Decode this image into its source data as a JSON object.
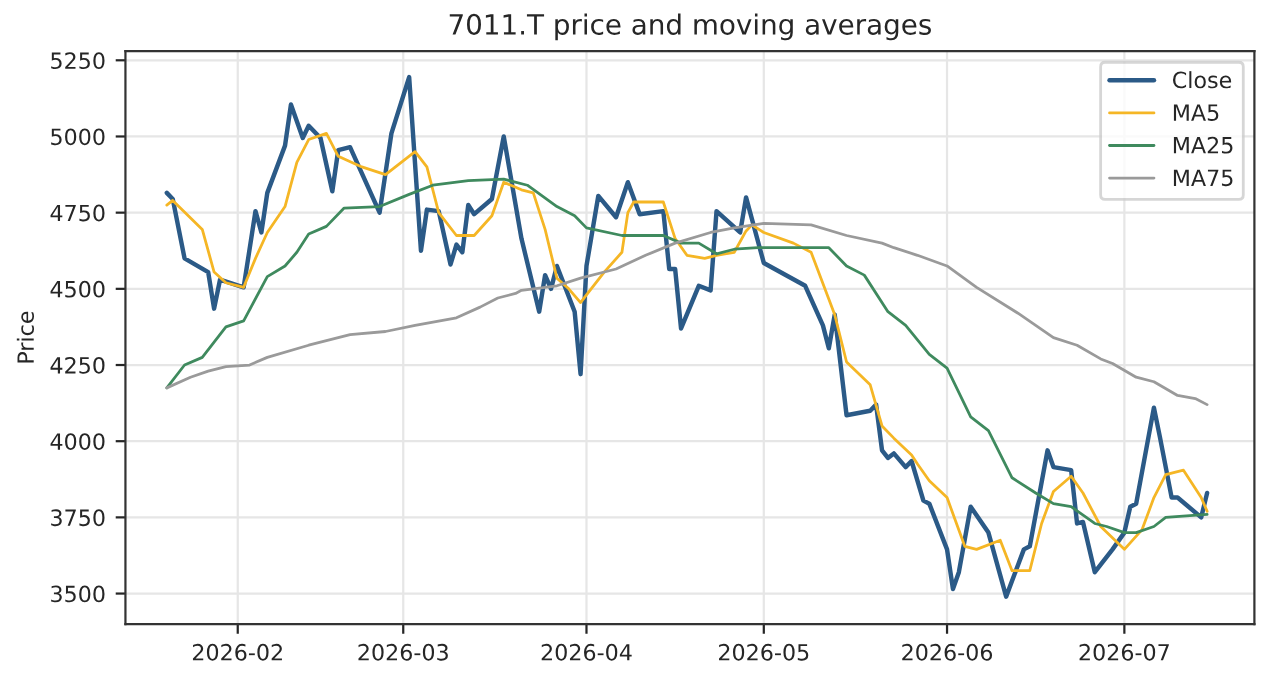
{
  "chart_data": {
    "type": "line",
    "title": "7011.T price and moving averages",
    "ylabel": "Price",
    "xlim": [
      "2026-01-13",
      "2026-07-23"
    ],
    "ylim": [
      3400,
      5280
    ],
    "xticks": [
      {
        "value": "2026-02-01",
        "label": "2026-02"
      },
      {
        "value": "2026-03-01",
        "label": "2026-03"
      },
      {
        "value": "2026-04-01",
        "label": "2026-04"
      },
      {
        "value": "2026-05-01",
        "label": "2026-05"
      },
      {
        "value": "2026-06-01",
        "label": "2026-06"
      },
      {
        "value": "2026-07-01",
        "label": "2026-07"
      }
    ],
    "yticks": [
      3500,
      3750,
      4000,
      4250,
      4500,
      4750,
      5000,
      5250
    ],
    "grid": true,
    "legend": "top right",
    "series": [
      {
        "name": "Close",
        "color": "#2b5a87",
        "x": [
          "2026-01-20",
          "2026-01-21",
          "2026-01-23",
          "2026-01-27",
          "2026-01-28",
          "2026-01-29",
          "2026-02-02",
          "2026-02-04",
          "2026-02-05",
          "2026-02-06",
          "2026-02-09",
          "2026-02-10",
          "2026-02-12",
          "2026-02-13",
          "2026-02-15",
          "2026-02-17",
          "2026-02-18",
          "2026-02-20",
          "2026-02-25",
          "2026-02-27",
          "2026-03-02",
          "2026-03-04",
          "2026-03-05",
          "2026-03-07",
          "2026-03-09",
          "2026-03-10",
          "2026-03-11",
          "2026-03-12",
          "2026-03-13",
          "2026-03-16",
          "2026-03-18",
          "2026-03-21",
          "2026-03-24",
          "2026-03-25",
          "2026-03-26",
          "2026-03-27",
          "2026-03-30",
          "2026-03-31",
          "2026-04-01",
          "2026-04-03",
          "2026-04-06",
          "2026-04-08",
          "2026-04-10",
          "2026-04-14",
          "2026-04-15",
          "2026-04-16",
          "2026-04-17",
          "2026-04-20",
          "2026-04-22",
          "2026-04-23",
          "2026-04-27",
          "2026-04-28",
          "2026-05-01",
          "2026-05-08",
          "2026-05-11",
          "2026-05-12",
          "2026-05-13",
          "2026-05-15",
          "2026-05-19",
          "2026-05-20",
          "2026-05-21",
          "2026-05-22",
          "2026-05-23",
          "2026-05-25",
          "2026-05-26",
          "2026-05-28",
          "2026-05-29",
          "2026-06-01",
          "2026-06-02",
          "2026-06-03",
          "2026-06-05",
          "2026-06-08",
          "2026-06-11",
          "2026-06-14",
          "2026-06-15",
          "2026-06-18",
          "2026-06-19",
          "2026-06-22",
          "2026-06-23",
          "2026-06-24",
          "2026-06-26",
          "2026-06-29",
          "2026-07-01",
          "2026-07-02",
          "2026-07-03",
          "2026-07-06",
          "2026-07-07",
          "2026-07-09",
          "2026-07-10",
          "2026-07-14",
          "2026-07-15"
        ],
        "values": [
          4815,
          4795,
          4600,
          4555,
          4435,
          4530,
          4505,
          4755,
          4685,
          4815,
          4970,
          5105,
          4995,
          5035,
          4995,
          4820,
          4955,
          4965,
          4750,
          5010,
          5195,
          4625,
          4760,
          4755,
          4580,
          4645,
          4620,
          4775,
          4745,
          4795,
          5000,
          4665,
          4425,
          4545,
          4500,
          4575,
          4425,
          4220,
          4575,
          4805,
          4735,
          4850,
          4745,
          4755,
          4565,
          4565,
          4370,
          4510,
          4495,
          4755,
          4685,
          4800,
          4585,
          4510,
          4380,
          4305,
          4415,
          4085,
          4100,
          4120,
          3970,
          3945,
          3960,
          3915,
          3935,
          3805,
          3795,
          3645,
          3515,
          3570,
          3785,
          3700,
          3490,
          3645,
          3655,
          3970,
          3915,
          3905,
          3730,
          3735,
          3570,
          3645,
          3700,
          3785,
          3795,
          4110,
          4015,
          3815,
          3815,
          3750,
          3830
        ]
      },
      {
        "name": "MA5",
        "color": "#f5b625",
        "x": [
          "2026-01-20",
          "2026-01-21",
          "2026-01-26",
          "2026-01-28",
          "2026-01-30",
          "2026-02-02",
          "2026-02-04",
          "2026-02-06",
          "2026-02-09",
          "2026-02-11",
          "2026-02-13",
          "2026-02-16",
          "2026-02-18",
          "2026-02-22",
          "2026-02-26",
          "2026-03-03",
          "2026-03-05",
          "2026-03-07",
          "2026-03-10",
          "2026-03-13",
          "2026-03-16",
          "2026-03-18",
          "2026-03-21",
          "2026-03-23",
          "2026-03-25",
          "2026-03-27",
          "2026-03-29",
          "2026-03-31",
          "2026-04-01",
          "2026-04-04",
          "2026-04-07",
          "2026-04-08",
          "2026-04-09",
          "2026-04-14",
          "2026-04-16",
          "2026-04-18",
          "2026-04-21",
          "2026-04-23",
          "2026-04-26",
          "2026-04-28",
          "2026-04-29",
          "2026-05-01",
          "2026-05-06",
          "2026-05-09",
          "2026-05-13",
          "2026-05-15",
          "2026-05-19",
          "2026-05-21",
          "2026-05-23",
          "2026-05-26",
          "2026-05-27",
          "2026-05-29",
          "2026-06-01",
          "2026-06-04",
          "2026-06-06",
          "2026-06-10",
          "2026-06-12",
          "2026-06-15",
          "2026-06-17",
          "2026-06-19",
          "2026-06-22",
          "2026-06-24",
          "2026-06-27",
          "2026-07-01",
          "2026-07-04",
          "2026-07-06",
          "2026-07-08",
          "2026-07-11",
          "2026-07-14",
          "2026-07-15"
        ],
        "values": [
          4775,
          4790,
          4695,
          4555,
          4520,
          4505,
          4600,
          4685,
          4770,
          4915,
          4990,
          5010,
          4935,
          4900,
          4875,
          4950,
          4900,
          4750,
          4675,
          4675,
          4740,
          4850,
          4825,
          4815,
          4695,
          4535,
          4500,
          4455,
          4480,
          4555,
          4620,
          4750,
          4785,
          4785,
          4665,
          4610,
          4600,
          4610,
          4620,
          4690,
          4710,
          4685,
          4650,
          4620,
          4415,
          4260,
          4185,
          4050,
          4010,
          3955,
          3925,
          3870,
          3815,
          3655,
          3645,
          3675,
          3575,
          3575,
          3730,
          3835,
          3885,
          3830,
          3720,
          3645,
          3710,
          3815,
          3890,
          3905,
          3815,
          3770
        ]
      },
      {
        "name": "MA25",
        "color": "#3f8a5e",
        "x": [
          "2026-01-20",
          "2026-01-23",
          "2026-01-26",
          "2026-01-30",
          "2026-02-02",
          "2026-02-06",
          "2026-02-09",
          "2026-02-11",
          "2026-02-13",
          "2026-02-16",
          "2026-02-19",
          "2026-02-25",
          "2026-03-02",
          "2026-03-06",
          "2026-03-12",
          "2026-03-18",
          "2026-03-22",
          "2026-03-27",
          "2026-03-30",
          "2026-04-01",
          "2026-04-07",
          "2026-04-14",
          "2026-04-17",
          "2026-04-20",
          "2026-04-23",
          "2026-04-26",
          "2026-04-30",
          "2026-05-06",
          "2026-05-12",
          "2026-05-15",
          "2026-05-18",
          "2026-05-22",
          "2026-05-25",
          "2026-05-29",
          "2026-06-01",
          "2026-06-05",
          "2026-06-08",
          "2026-06-12",
          "2026-06-16",
          "2026-06-19",
          "2026-06-22",
          "2026-06-26",
          "2026-06-28",
          "2026-07-01",
          "2026-07-03",
          "2026-07-06",
          "2026-07-08",
          "2026-07-15"
        ],
        "values": [
          4175,
          4250,
          4275,
          4375,
          4395,
          4540,
          4575,
          4620,
          4680,
          4705,
          4765,
          4770,
          4810,
          4840,
          4855,
          4860,
          4840,
          4770,
          4740,
          4700,
          4675,
          4675,
          4650,
          4650,
          4615,
          4630,
          4635,
          4635,
          4635,
          4575,
          4545,
          4425,
          4380,
          4285,
          4240,
          4080,
          4035,
          3880,
          3830,
          3795,
          3785,
          3730,
          3720,
          3700,
          3700,
          3720,
          3750,
          3760
        ]
      },
      {
        "name": "MA75",
        "color": "#9a9a9a",
        "x": [
          "2026-01-20",
          "2026-01-24",
          "2026-01-27",
          "2026-01-30",
          "2026-02-03",
          "2026-02-06",
          "2026-02-13",
          "2026-02-20",
          "2026-02-26",
          "2026-03-03",
          "2026-03-10",
          "2026-03-14",
          "2026-03-17",
          "2026-03-20",
          "2026-03-21",
          "2026-03-27",
          "2026-03-31",
          "2026-04-06",
          "2026-04-11",
          "2026-04-16",
          "2026-04-22",
          "2026-04-26",
          "2026-05-01",
          "2026-05-09",
          "2026-05-15",
          "2026-05-21",
          "2026-05-23",
          "2026-05-27",
          "2026-06-01",
          "2026-06-06",
          "2026-06-13",
          "2026-06-16",
          "2026-06-19",
          "2026-06-23",
          "2026-06-27",
          "2026-06-29",
          "2026-07-03",
          "2026-07-06",
          "2026-07-10",
          "2026-07-13",
          "2026-07-15"
        ],
        "values": [
          4175,
          4210,
          4230,
          4245,
          4250,
          4275,
          4315,
          4350,
          4360,
          4380,
          4405,
          4440,
          4470,
          4485,
          4495,
          4510,
          4535,
          4565,
          4610,
          4650,
          4685,
          4700,
          4715,
          4710,
          4675,
          4650,
          4635,
          4610,
          4575,
          4505,
          4420,
          4380,
          4340,
          4315,
          4270,
          4255,
          4210,
          4195,
          4150,
          4140,
          4120
        ]
      }
    ]
  }
}
